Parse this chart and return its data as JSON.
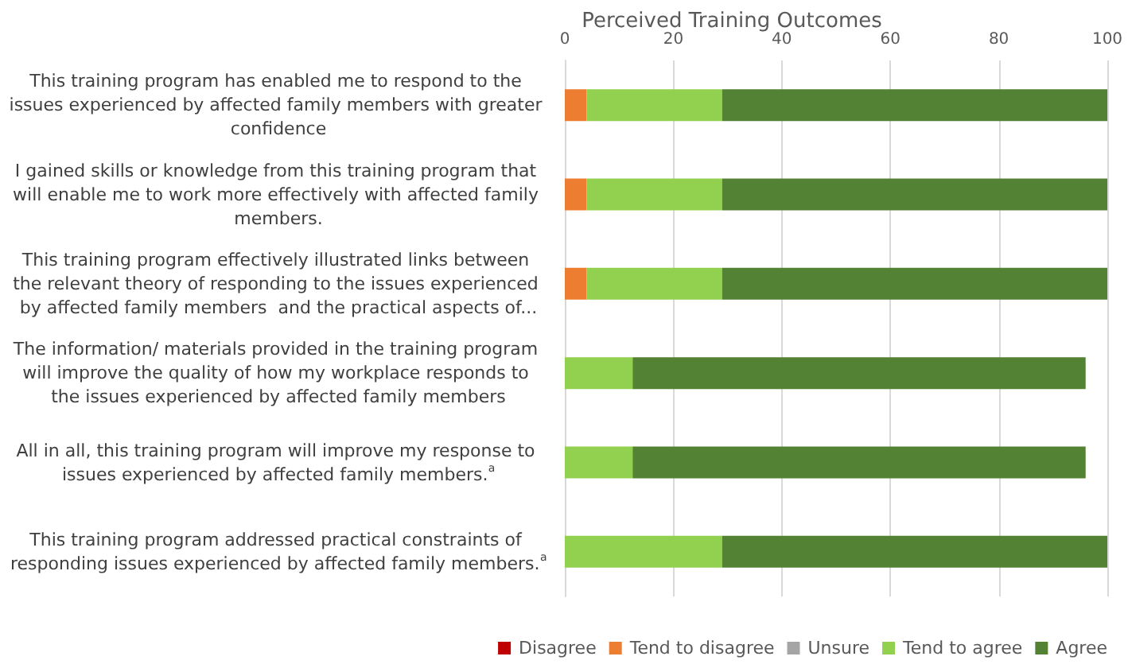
{
  "chart_data": {
    "type": "bar",
    "title": "Perceived Training Outcomes",
    "orientation": "horizontal",
    "stacked": true,
    "categories": [
      "This training program has enabled me to respond to the issues experienced by affected family members with greater confidence",
      "I gained skills or knowledge from this training program that will enable me to work more effectively with affected family members.",
      "This training program effectively illustrated links between the relevant theory of responding to the issues experienced by affected family members  and the practical aspects of...",
      "The information/ materials provided in the training program will improve the quality of how my workplace responds to the issues experienced by affected family members",
      "All in all, this training program will improve my response to issues experienced by affected family members.$^{a}$",
      "This training program addressed practical constraints of responding issues experienced by affected family members.$^{a}$"
    ],
    "series": [
      {
        "name": "Disagree",
        "color": "#c00000",
        "values": [
          0,
          0,
          0,
          0,
          0,
          0
        ]
      },
      {
        "name": "Tend to disagree",
        "color": "#ed7d31",
        "values": [
          4,
          4,
          4,
          0,
          0,
          0
        ]
      },
      {
        "name": "Unsure",
        "color": "#a5a5a5",
        "values": [
          0,
          0,
          0,
          0,
          0,
          0
        ]
      },
      {
        "name": "Tend to agree",
        "color": "#92d050",
        "values": [
          25,
          25,
          25,
          12.5,
          12.5,
          29
        ]
      },
      {
        "name": "Agree",
        "color": "#548235",
        "values": [
          71,
          71,
          71,
          83.5,
          83.5,
          71
        ]
      }
    ],
    "xlim": [
      0,
      100
    ],
    "xticks": [
      0,
      20,
      40,
      60,
      80,
      100
    ],
    "grid": "x",
    "legend": "bottom"
  }
}
